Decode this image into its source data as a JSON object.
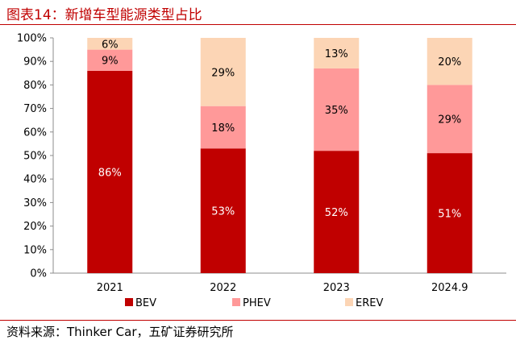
{
  "title": "图表14：新增车型能源类型占比",
  "source": "资料来源：Thinker Car，五矿证券研究所",
  "colors": {
    "BEV": "#C00000",
    "PHEV": "#FF9999",
    "EREV": "#FCD5B5",
    "accent": "#C00000"
  },
  "chart_data": {
    "type": "bar",
    "stacked": true,
    "categories": [
      "2021",
      "2022",
      "2023",
      "2024.9"
    ],
    "series": [
      {
        "name": "BEV",
        "values": [
          86,
          53,
          52,
          51
        ],
        "labels": [
          "86%",
          "53%",
          "52%",
          "51%"
        ]
      },
      {
        "name": "PHEV",
        "values": [
          9,
          18,
          35,
          29
        ],
        "labels": [
          "9%",
          "18%",
          "35%",
          "29%"
        ]
      },
      {
        "name": "EREV",
        "values": [
          6,
          29,
          13,
          20
        ],
        "labels": [
          "6%",
          "29%",
          "13%",
          "20%"
        ]
      }
    ],
    "ylim": [
      0,
      100
    ],
    "yticks": [
      "0%",
      "10%",
      "20%",
      "30%",
      "40%",
      "50%",
      "60%",
      "70%",
      "80%",
      "90%",
      "100%"
    ],
    "legend": "bottom",
    "grid": false
  }
}
